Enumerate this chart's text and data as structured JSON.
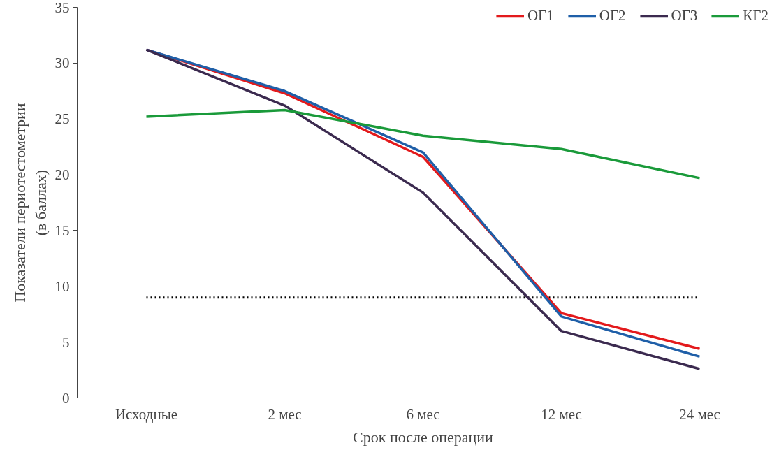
{
  "chart_data": {
    "type": "line",
    "xlabel": "Срок после операции",
    "ylabel": "Показатели периотестометрии\n(в баллах)",
    "categories": [
      "Исходные",
      "2 мес",
      "6 мес",
      "12 мес",
      "24 мес"
    ],
    "series": [
      {
        "name": "ОГ1",
        "color": "#e31a1c",
        "values": [
          31.2,
          27.3,
          21.6,
          7.6,
          4.4
        ]
      },
      {
        "name": "ОГ2",
        "color": "#1f5fa8",
        "values": [
          31.2,
          27.5,
          22.0,
          7.3,
          3.7
        ]
      },
      {
        "name": "ОГ3",
        "color": "#3b2a4f",
        "values": [
          31.2,
          26.2,
          18.4,
          6.0,
          2.6
        ]
      },
      {
        "name": "КГ2",
        "color": "#1a9a3a",
        "values": [
          25.2,
          25.8,
          23.5,
          22.3,
          19.7
        ]
      }
    ],
    "ylim": [
      0,
      35
    ],
    "yticks": [
      0,
      5,
      10,
      15,
      20,
      25,
      30,
      35
    ],
    "ref_lines": [
      {
        "axis": "y",
        "value": 9,
        "color": "#000000",
        "line_style": "dotted"
      }
    ],
    "legend": "top right",
    "grid": false,
    "marker": "none",
    "line_style": "solid"
  }
}
